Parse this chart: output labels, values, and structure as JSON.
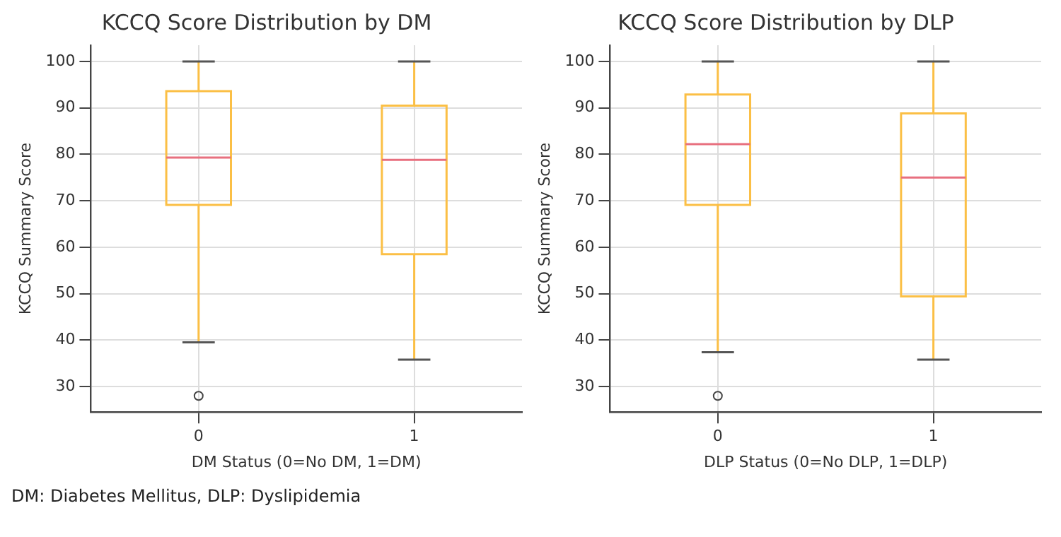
{
  "chart_data": [
    {
      "type": "box",
      "title": "KCCQ Score Distribution by DM",
      "xlabel": "DM Status (0=No DM, 1=DM)",
      "ylabel": "KCCQ Summary Score",
      "categories": [
        "0",
        "1"
      ],
      "ylim": [
        24.5,
        103.5
      ],
      "yticks": [
        30,
        40,
        50,
        60,
        70,
        80,
        90,
        100
      ],
      "grid": true,
      "annotations": [
        "DM: Diabetes Mellitus, DLP: Dyslipidemia"
      ],
      "series": [
        {
          "color": "#fbbf45",
          "boxes": [
            {
              "low": 39.5,
              "q1": 69.1,
              "median": 79.3,
              "q3": 93.6,
              "high": 100,
              "outliers": [
                28
              ]
            },
            {
              "low": 35.8,
              "q1": 58.5,
              "median": 78.8,
              "q3": 90.5,
              "high": 100
            }
          ]
        }
      ]
    },
    {
      "type": "box",
      "title": "KCCQ Score Distribution by DLP",
      "xlabel": "DLP Status (0=No DLP, 1=DLP)",
      "ylabel": "KCCQ Summary Score",
      "categories": [
        "0",
        "1"
      ],
      "ylim": [
        24.5,
        103.5
      ],
      "yticks": [
        30,
        40,
        50,
        60,
        70,
        80,
        90,
        100
      ],
      "grid": true,
      "series": [
        {
          "color": "#fbbf45",
          "boxes": [
            {
              "low": 37.4,
              "q1": 69.1,
              "median": 82.2,
              "q3": 92.9,
              "high": 100,
              "outliers": [
                28
              ]
            },
            {
              "low": 35.8,
              "q1": 49.4,
              "median": 75.0,
              "q3": 88.8,
              "high": 100
            }
          ]
        }
      ]
    }
  ]
}
